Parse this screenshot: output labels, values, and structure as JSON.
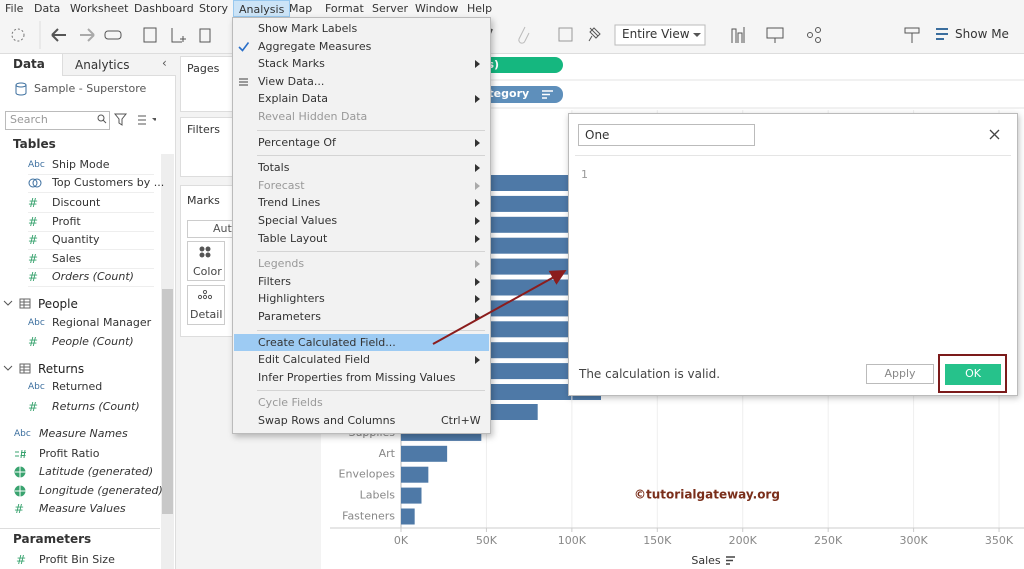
{
  "menu_bar": {
    "items": [
      "File",
      "Data",
      "Worksheet",
      "Dashboard",
      "Story",
      "Analysis",
      "Map",
      "Format",
      "Server",
      "Window",
      "Help"
    ],
    "active_index": 5
  },
  "toolbar": {
    "fit": "Entire View",
    "show_me": "Show Me"
  },
  "data_pane": {
    "tabs": [
      "Data",
      "Analytics"
    ],
    "source": "Sample - Superstore",
    "search_placeholder": "Search",
    "tables_header": "Tables",
    "entries": [
      {
        "icon": "Abc",
        "label": "Ship Mode",
        "level": 1
      },
      {
        "icon": "set",
        "label": "Top Customers by ...",
        "level": 1
      },
      {
        "icon": "#",
        "label": "Discount",
        "level": 1
      },
      {
        "icon": "#",
        "label": "Profit",
        "level": 1
      },
      {
        "icon": "#",
        "label": "Quantity",
        "level": 1
      },
      {
        "icon": "#",
        "label": "Sales",
        "level": 1
      },
      {
        "icon": "#",
        "label": "Orders (Count)",
        "level": 1,
        "italic": true
      },
      {
        "group": "People"
      },
      {
        "icon": "Abc",
        "label": "Regional Manager",
        "level": 1
      },
      {
        "icon": "#",
        "label": "People (Count)",
        "level": 1,
        "italic": true
      },
      {
        "group": "Returns"
      },
      {
        "icon": "Abc",
        "label": "Returned",
        "level": 1
      },
      {
        "icon": "#",
        "label": "Returns (Count)",
        "level": 1,
        "italic": true
      },
      {
        "icon": "Abc",
        "label": "Measure Names",
        "level": 0,
        "italic": true
      },
      {
        "icon": "calc",
        "label": "Profit Ratio",
        "level": 0
      },
      {
        "icon": "globe",
        "label": "Latitude (generated)",
        "level": 0,
        "italic": true
      },
      {
        "icon": "globe",
        "label": "Longitude (generated)",
        "level": 0,
        "italic": true
      },
      {
        "icon": "#",
        "label": "Measure Values",
        "level": 0,
        "italic": true
      }
    ],
    "parameters_header": "Parameters",
    "parameters": [
      {
        "icon": "#",
        "label": "Profit Bin Size"
      }
    ]
  },
  "cards": {
    "pages": "Pages",
    "filters": "Filters",
    "marks": "Marks",
    "mark_type": "Auto",
    "color": "Color",
    "detail": "Detail"
  },
  "shelves": {
    "columns_pill": "es)",
    "rows_pill": "ategory"
  },
  "analysis_menu": {
    "groups": [
      [
        {
          "label": "Show Mark Labels"
        },
        {
          "label": "Aggregate Measures",
          "checked": true
        },
        {
          "label": "Stack Marks",
          "submenu": true
        },
        {
          "label": "View Data...",
          "icon": true
        },
        {
          "label": "Explain Data",
          "submenu": true
        },
        {
          "label": "Reveal Hidden Data",
          "disabled": true
        }
      ],
      [
        {
          "label": "Percentage Of",
          "submenu": true
        }
      ],
      [
        {
          "label": "Totals",
          "submenu": true
        },
        {
          "label": "Forecast",
          "submenu": true,
          "disabled": true
        },
        {
          "label": "Trend Lines",
          "submenu": true
        },
        {
          "label": "Special Values",
          "submenu": true
        },
        {
          "label": "Table Layout",
          "submenu": true
        }
      ],
      [
        {
          "label": "Legends",
          "submenu": true,
          "disabled": true
        },
        {
          "label": "Filters",
          "submenu": true
        },
        {
          "label": "Highlighters",
          "submenu": true
        },
        {
          "label": "Parameters",
          "submenu": true
        }
      ],
      [
        {
          "label": "Create Calculated Field...",
          "highlighted": true
        },
        {
          "label": "Edit Calculated Field",
          "submenu": true
        },
        {
          "label": "Infer Properties from Missing Values"
        }
      ],
      [
        {
          "label": "Cycle Fields",
          "disabled": true
        },
        {
          "label": "Swap Rows and Columns",
          "shortcut": "Ctrl+W"
        }
      ]
    ]
  },
  "chart_data": {
    "type": "bar",
    "orientation": "horizontal",
    "categories": [
      null,
      "Supplies",
      "Art",
      "Envelopes",
      "Labels",
      "Fasteners"
    ],
    "values": [
      80,
      47,
      27,
      16,
      12,
      8
    ],
    "color": "#4e79a7",
    "xlim": [
      0,
      357
    ],
    "xticks": [
      {
        "value": 0,
        "label": "0K"
      },
      {
        "value": 50,
        "label": "50K"
      },
      {
        "value": 100,
        "label": "100K"
      },
      {
        "value": 150,
        "label": "150K"
      },
      {
        "value": 200,
        "label": "200K"
      },
      {
        "value": 250,
        "label": "250K"
      },
      {
        "value": 300,
        "label": "300K"
      },
      {
        "value": 350,
        "label": "350K"
      }
    ],
    "x_label": "Sales",
    "grid": true
  },
  "watermark": "©tutorialgateway.org",
  "calc_dialog": {
    "name": "One",
    "line_number": "1",
    "status": "The calculation is valid.",
    "apply": "Apply",
    "ok": "OK"
  }
}
